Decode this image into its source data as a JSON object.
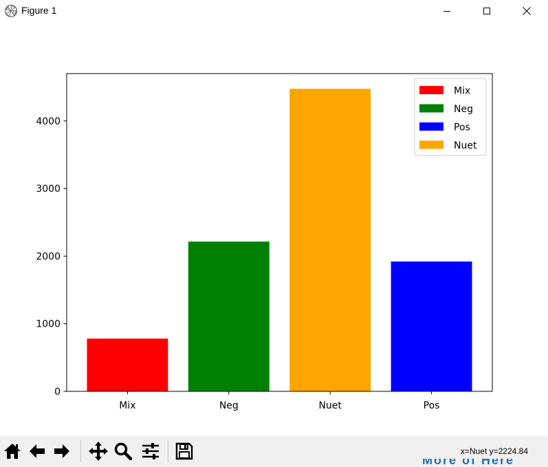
{
  "window": {
    "title": "Figure 1",
    "minimize_icon": "minimize-icon",
    "maximize_icon": "maximize-icon",
    "close_icon": "close-icon"
  },
  "chart_data": {
    "type": "bar",
    "categories": [
      "Mix",
      "Neg",
      "Nuet",
      "Pos"
    ],
    "values": [
      780,
      2215,
      4475,
      1920
    ],
    "colors": [
      "#ff0000",
      "#008000",
      "#ffa500",
      "#0000ff"
    ],
    "ylim": [
      0,
      4700
    ],
    "yticks": [
      0,
      1000,
      2000,
      3000,
      4000
    ],
    "title": "",
    "xlabel": "",
    "ylabel": "",
    "legend": {
      "placement": "top-right",
      "entries": [
        {
          "label": "Mix",
          "color": "#ff0000"
        },
        {
          "label": "Neg",
          "color": "#008000"
        },
        {
          "label": "Pos",
          "color": "#0000ff"
        },
        {
          "label": "Nuet",
          "color": "#ffa500"
        }
      ]
    },
    "grid": false
  },
  "toolbar": {
    "buttons": [
      {
        "name": "home-button",
        "icon": "home-icon"
      },
      {
        "name": "back-button",
        "icon": "arrow-left-icon"
      },
      {
        "name": "forward-button",
        "icon": "arrow-right-icon"
      },
      {
        "name": "pan-button",
        "icon": "move-icon"
      },
      {
        "name": "zoom-button",
        "icon": "magnifier-icon"
      },
      {
        "name": "configure-subplots-button",
        "icon": "sliders-icon"
      },
      {
        "name": "save-button",
        "icon": "floppy-icon"
      }
    ],
    "coordinates": "x=Nuet y=2224.84"
  },
  "background_fragment": "More of Here"
}
